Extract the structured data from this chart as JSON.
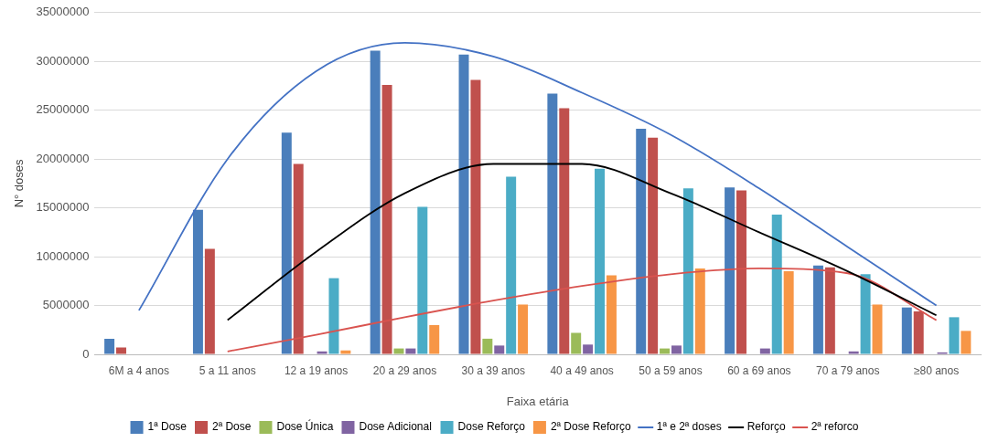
{
  "chart_data": {
    "type": "bar",
    "xlabel": "Faixa etária",
    "ylabel": "N° doses",
    "categories": [
      "6M a 4 anos",
      "5 a 11 anos",
      "12 a 19 anos",
      "20 a 29 anos",
      "30 a 39 anos",
      "40 a 49 anos",
      "50 a 59 anos",
      "60 a 69 anos",
      "70 a 79 anos",
      "≥80 anos"
    ],
    "series": [
      {
        "name": "1ª Dose",
        "color": "#4a7ebb",
        "values": [
          1600000,
          14800000,
          22700000,
          31100000,
          30700000,
          26700000,
          23100000,
          17100000,
          9100000,
          4800000
        ]
      },
      {
        "name": "2ª Dose",
        "color": "#c0504d",
        "values": [
          700000,
          10800000,
          19500000,
          27600000,
          28100000,
          25200000,
          22200000,
          16800000,
          8900000,
          4400000
        ]
      },
      {
        "name": "Dose Única",
        "color": "#9bbb59",
        "values": [
          0,
          0,
          0,
          600000,
          1600000,
          2200000,
          600000,
          0,
          0,
          0
        ]
      },
      {
        "name": "Dose Adicional",
        "color": "#8064a2",
        "values": [
          0,
          0,
          300000,
          600000,
          900000,
          1000000,
          900000,
          600000,
          300000,
          200000
        ]
      },
      {
        "name": "Dose Reforço",
        "color": "#4bacc6",
        "values": [
          0,
          0,
          7800000,
          15100000,
          18200000,
          19000000,
          17000000,
          14300000,
          8200000,
          3800000
        ]
      },
      {
        "name": "2ª Dose Reforço",
        "color": "#f79646",
        "values": [
          0,
          0,
          400000,
          3000000,
          5100000,
          8100000,
          8800000,
          8500000,
          5100000,
          2400000
        ]
      },
      {
        "name": "1ª e 2ª doses",
        "type": "line",
        "color": "#4472c4",
        "values": [
          4500000,
          20000000,
          29000000,
          31900000,
          30500000,
          26800000,
          22500000,
          17000000,
          11000000,
          5000000
        ]
      },
      {
        "name": "Reforço",
        "type": "line",
        "color": "#000000",
        "values": [
          null,
          3500000,
          10500000,
          16500000,
          19500000,
          19500000,
          16500000,
          12500000,
          8500000,
          4000000
        ]
      },
      {
        "name": "2ª reforco",
        "type": "line",
        "color": "#d9534f",
        "values": [
          null,
          300000,
          2000000,
          3800000,
          5500000,
          7000000,
          8200000,
          8800000,
          8300000,
          3500000
        ]
      }
    ],
    "ylim": [
      0,
      35000000
    ],
    "yticks": [
      0,
      5000000,
      10000000,
      15000000,
      20000000,
      25000000,
      30000000,
      35000000
    ],
    "grid": "y",
    "legend": "bottom",
    "marker": "none"
  }
}
